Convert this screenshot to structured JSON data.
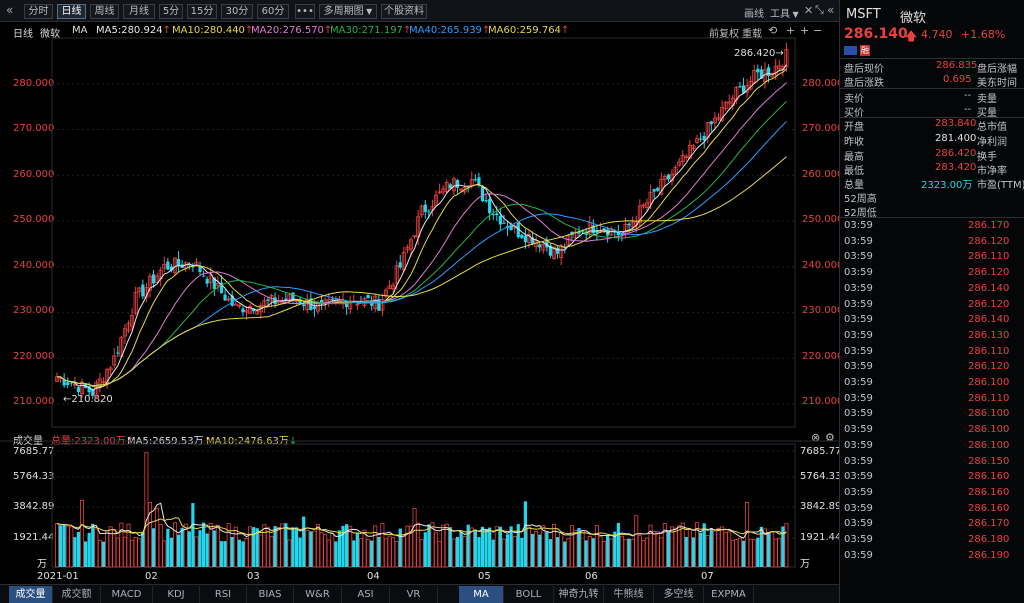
{
  "toolbar": {
    "collapse_glyph": "«",
    "periods": [
      "分时",
      "日线",
      "周线",
      "月线",
      "5分",
      "15分",
      "30分",
      "60分"
    ],
    "active_period": "日线",
    "more": "•••",
    "multi_period": "多周期图",
    "profile": "个股资料",
    "draw": "画线",
    "tools": "工具",
    "ctrl_glyphs": [
      "✕",
      "⤡",
      "«"
    ]
  },
  "chart_header": {
    "period": "日线",
    "name": "微软",
    "ma_label": "MA",
    "ma_items": [
      {
        "text": "MA5:280.924",
        "arrow": "↑",
        "color": "#e8e8e8"
      },
      {
        "text": "MA10:280.440",
        "arrow": "↑",
        "color": "#e6d84a"
      },
      {
        "text": "MA20:276.570",
        "arrow": "↑",
        "color": "#e07ad6"
      },
      {
        "text": "MA30:271.197",
        "arrow": "↑",
        "color": "#28b24b"
      },
      {
        "text": "MA40:265.939",
        "arrow": "↑",
        "color": "#2a9dff"
      },
      {
        "text": "MA60:259.764",
        "arrow": "↑",
        "color": "#e6d84a"
      }
    ],
    "right_labels": [
      "前复权",
      "重载"
    ],
    "right_glyphs": [
      "⟲",
      "+",
      "+",
      "−"
    ]
  },
  "price_axis": {
    "min": 205,
    "max": 290,
    "ticks": [
      "280.000",
      "270.000",
      "260.000",
      "250.000",
      "240.000",
      "230.000",
      "220.000",
      "210.000"
    ]
  },
  "annotations": {
    "high": "286.420",
    "low": "210.820"
  },
  "volume_header": {
    "title": "成交量",
    "total": "总量:2323.00万",
    "total_arrow": "↑",
    "ma5": "MA5:2659.53万",
    "ma5_arrow": "↑",
    "ma10": "MA10:2476.63万",
    "ma10_arrow": "↓",
    "close_glyphs": [
      "⊗",
      "⚙"
    ]
  },
  "volume_axis": {
    "ticks": [
      "7685.77",
      "5764.33",
      "3842.89",
      "1921.44"
    ],
    "unit": "万"
  },
  "date_axis": {
    "labels": [
      "2021-01",
      "02",
      "03",
      "04",
      "05",
      "06",
      "07"
    ]
  },
  "bottom_tabs": {
    "left": [
      "成交量",
      "成交额",
      "MACD",
      "KDJ",
      "RSI",
      "BIAS",
      "W&R",
      "ASI",
      "VR"
    ],
    "right": [
      "MA",
      "BOLL",
      "神奇九转",
      "牛熊线",
      "多空线",
      "EXPMA"
    ],
    "active": [
      "成交量",
      "MA"
    ]
  },
  "quote": {
    "symbol": "MSFT",
    "name": "微软",
    "price": "286.140",
    "change": "4.740",
    "pct": "+1.68%",
    "flag": "US",
    "tag": "融",
    "after_hours_label": "盘后现价",
    "after_hours_price": "286.835",
    "after_hours_pct_label": "盘后涨幅",
    "after_hours_pct": "",
    "after_hours_chg_label": "盘后涨跌",
    "after_hours_chg": "0.695",
    "usd_label": "美东时间",
    "ask_label": "卖价",
    "ask_value": "--",
    "ask_vol_label": "卖量",
    "bid_label": "买价",
    "bid_value": "--",
    "bid_vol_label": "买量",
    "stats": [
      {
        "label": "开盘",
        "value": "283.840",
        "tone": "red",
        "label2": "总市值"
      },
      {
        "label": "昨收",
        "value": "281.400",
        "tone": "wh",
        "label2": "净利润"
      },
      {
        "label": "最高",
        "value": "286.420",
        "tone": "red",
        "label2": "换手"
      },
      {
        "label": "最低",
        "value": "283.420",
        "tone": "red",
        "label2": "市净率"
      },
      {
        "label": "总量",
        "value": "2323.00万",
        "tone": "cyan",
        "label2": "市盈(TTM)"
      }
    ],
    "week52_high_label": "52周高",
    "week52_low_label": "52周低"
  },
  "ticks": [
    {
      "time": "03:59",
      "price": "286.170"
    },
    {
      "time": "03:59",
      "price": "286.120"
    },
    {
      "time": "03:59",
      "price": "286.110"
    },
    {
      "time": "03:59",
      "price": "286.120"
    },
    {
      "time": "03:59",
      "price": "286.140"
    },
    {
      "time": "03:59",
      "price": "286.120"
    },
    {
      "time": "03:59",
      "price": "286.140"
    },
    {
      "time": "03:59",
      "price": "286.130"
    },
    {
      "time": "03:59",
      "price": "286.110"
    },
    {
      "time": "03:59",
      "price": "286.120"
    },
    {
      "time": "03:59",
      "price": "286.100"
    },
    {
      "time": "03:59",
      "price": "286.110"
    },
    {
      "time": "03:59",
      "price": "286.100"
    },
    {
      "time": "03:59",
      "price": "286.100"
    },
    {
      "time": "03:59",
      "price": "286.100"
    },
    {
      "time": "03:59",
      "price": "286.150"
    },
    {
      "time": "03:59",
      "price": "286.160"
    },
    {
      "time": "03:59",
      "price": "286.160"
    },
    {
      "time": "03:59",
      "price": "286.160"
    },
    {
      "time": "03:59",
      "price": "286.170"
    },
    {
      "time": "03:59",
      "price": "286.180"
    },
    {
      "time": "03:59",
      "price": "286.190"
    }
  ],
  "colors": {
    "up": "#e84141",
    "down": "#1fd8ee",
    "ma5": "#e8e8e8",
    "ma10": "#e6d84a",
    "ma20": "#e07ad6",
    "ma30": "#28b24b",
    "ma40": "#2a9dff",
    "ma60": "#e6d84a"
  }
}
